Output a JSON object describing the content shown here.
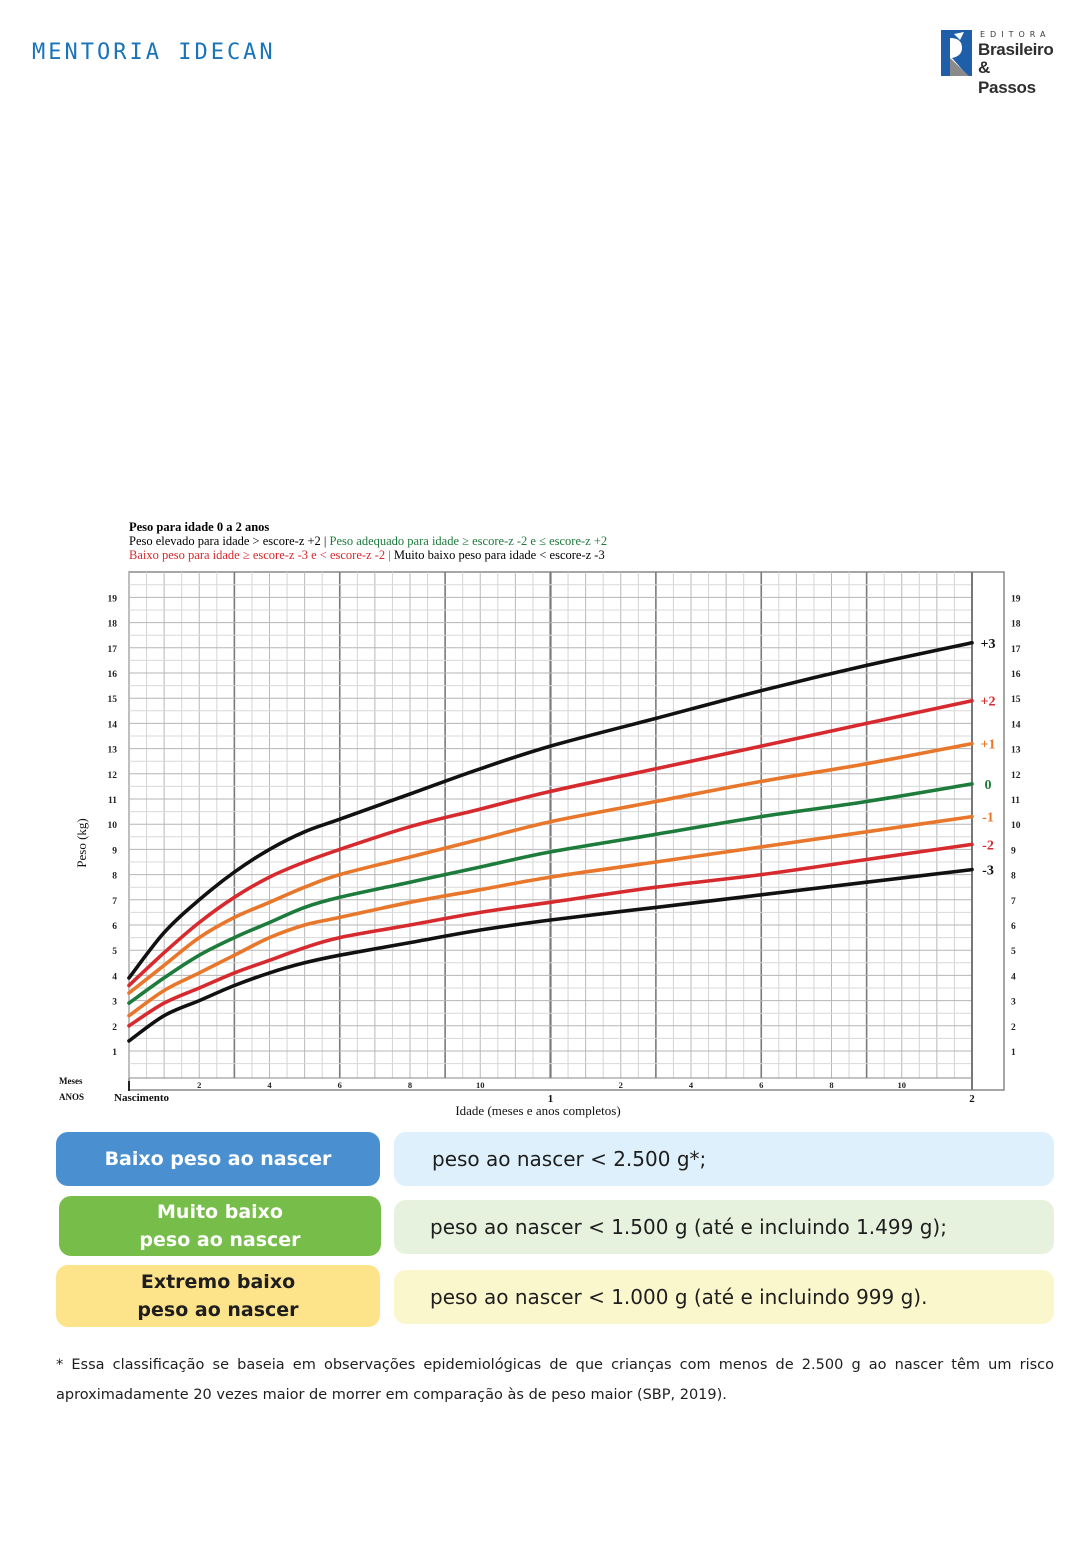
{
  "header": {
    "title": "MENTORIA IDECAN",
    "logo": {
      "line_editora": "EDITORA",
      "line1": "Brasileiro",
      "line2": "& Passos",
      "colors": {
        "blue": "#1f5ea8",
        "gray": "#8a8a8a"
      }
    }
  },
  "chart": {
    "title": "Peso para idade 0 a 2 anos",
    "legend_line1": {
      "part1": "Peso elevado para idade > escore-z +2 | ",
      "part2": "Peso adequado para idade ≥ escore-z -2 e ≤ escore-z +2"
    },
    "legend_line2": {
      "part1": "Baixo peso para idade ≥ escore-z -3 e < escore-z -2 | ",
      "part2": "Muito baixo peso para idade < escore-z -3"
    },
    "ylabel": "Peso (kg)",
    "xlabel": "Idade (meses e anos completos)",
    "row_label_months": "Meses",
    "row_label_years": "ANOS",
    "birth_label": "Nascimento"
  },
  "chart_data": {
    "type": "line",
    "title": "Peso para idade 0 a 2 anos",
    "xlabel": "Idade (meses e anos completos)",
    "ylabel": "Peso (kg)",
    "xlim": [
      0,
      24
    ],
    "ylim": [
      0,
      20
    ],
    "yticks": [
      1,
      2,
      3,
      4,
      5,
      6,
      7,
      8,
      9,
      10,
      11,
      12,
      13,
      14,
      15,
      16,
      17,
      18,
      19
    ],
    "month_ticks": [
      {
        "x": 2,
        "label": "2"
      },
      {
        "x": 4,
        "label": "4"
      },
      {
        "x": 6,
        "label": "6"
      },
      {
        "x": 8,
        "label": "8"
      },
      {
        "x": 10,
        "label": "10"
      },
      {
        "x": 14,
        "label": "2"
      },
      {
        "x": 16,
        "label": "4"
      },
      {
        "x": 18,
        "label": "6"
      },
      {
        "x": 20,
        "label": "8"
      },
      {
        "x": 22,
        "label": "10"
      }
    ],
    "year_ticks": [
      {
        "x": 12,
        "label": "1"
      },
      {
        "x": 24,
        "label": "2"
      }
    ],
    "grid": true,
    "x": [
      0,
      1,
      2,
      3,
      4,
      5,
      6,
      8,
      10,
      12,
      15,
      18,
      21,
      24
    ],
    "series": [
      {
        "name": "+3",
        "color": "#111111",
        "values": [
          3.9,
          5.7,
          7.0,
          8.1,
          9.0,
          9.7,
          10.2,
          11.2,
          12.2,
          13.1,
          14.2,
          15.3,
          16.3,
          17.2
        ]
      },
      {
        "name": "+2",
        "color": "#d62a2e",
        "values": [
          3.6,
          4.9,
          6.1,
          7.1,
          7.9,
          8.5,
          9.0,
          9.9,
          10.6,
          11.3,
          12.2,
          13.1,
          14.0,
          14.9
        ]
      },
      {
        "name": "+1",
        "color": "#e8762b",
        "values": [
          3.3,
          4.4,
          5.5,
          6.3,
          6.9,
          7.5,
          8.0,
          8.7,
          9.4,
          10.1,
          10.9,
          11.7,
          12.4,
          13.2
        ]
      },
      {
        "name": "0",
        "color": "#1d7b3c",
        "values": [
          2.9,
          3.9,
          4.8,
          5.5,
          6.1,
          6.7,
          7.1,
          7.7,
          8.3,
          8.9,
          9.6,
          10.3,
          10.9,
          11.6
        ]
      },
      {
        "name": "-1",
        "color": "#e8762b",
        "values": [
          2.4,
          3.4,
          4.1,
          4.8,
          5.5,
          6.0,
          6.3,
          6.9,
          7.4,
          7.9,
          8.5,
          9.1,
          9.7,
          10.3
        ]
      },
      {
        "name": "-2",
        "color": "#d62a2e",
        "values": [
          2.0,
          2.9,
          3.5,
          4.1,
          4.6,
          5.1,
          5.5,
          6.0,
          6.5,
          6.9,
          7.5,
          8.0,
          8.6,
          9.2
        ]
      },
      {
        "name": "-3",
        "color": "#111111",
        "values": [
          1.4,
          2.4,
          3.0,
          3.6,
          4.1,
          4.5,
          4.8,
          5.3,
          5.8,
          6.2,
          6.7,
          7.2,
          7.7,
          8.2
        ]
      }
    ],
    "series_label_colors": [
      "#111111",
      "#d62a2e",
      "#e8762b",
      "#1d7b3c",
      "#e8762b",
      "#d62a2e",
      "#111111"
    ]
  },
  "classifications": [
    {
      "label": "Baixo peso ao nascer",
      "desc": "peso ao nascer < 2.500 g*;",
      "label_bg": "#4a90d0",
      "label_color": "#ffffff",
      "desc_bg": "#ddf0fb"
    },
    {
      "label": "Muito baixo\npeso ao nascer",
      "desc": "peso ao nascer < 1.500 g (até e incluindo 1.499 g);",
      "label_bg": "#76be49",
      "label_color": "#ffffff",
      "desc_bg": "#e7f2de"
    },
    {
      "label": "Extremo baixo\npeso ao nascer",
      "desc": "peso ao nascer < 1.000 g (até e incluindo 999 g).",
      "label_bg": "#fde38a",
      "label_color": "#1e1e1e",
      "desc_bg": "#fbf7cc"
    }
  ],
  "footnote": "* Essa classificação se baseia em observações epidemiológicas de que crianças com menos de 2.500 g ao nascer têm um risco aproximadamente 20 vezes maior de morrer em comparação às de peso maior (SBP, 2019)."
}
